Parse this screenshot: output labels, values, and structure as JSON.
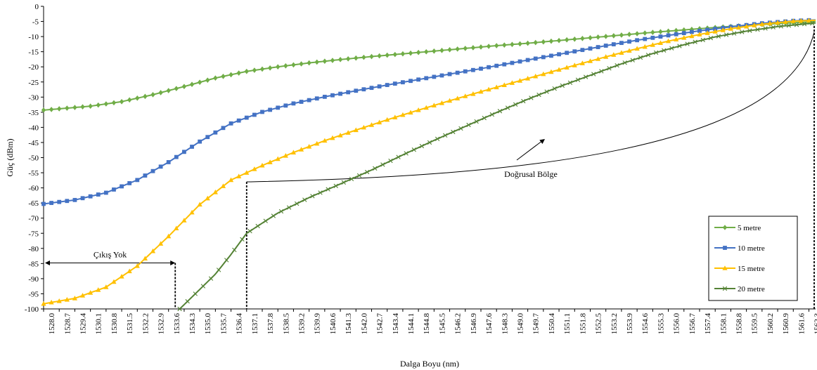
{
  "chart_data": {
    "type": "line",
    "title": "",
    "xlabel": "Dalga Boyu (nm)",
    "ylabel": "Güç (dBm)",
    "ylim": [
      -100,
      0
    ],
    "y_ticks": [
      0,
      -5,
      -10,
      -15,
      -20,
      -25,
      -30,
      -35,
      -40,
      -45,
      -50,
      -55,
      -60,
      -65,
      -70,
      -75,
      -80,
      -85,
      -90,
      -95,
      -100
    ],
    "xlim": [
      1528.0,
      1562.6
    ],
    "x_tick_labels": [
      "1528.0",
      "1528.7",
      "1529.4",
      "1530.1",
      "1530.8",
      "1531.5",
      "1532.2",
      "1532.9",
      "1533.6",
      "1534.3",
      "1535.0",
      "1535.7",
      "1536.4",
      "1537.1",
      "1537.8",
      "1538.5",
      "1539.2",
      "1539.9",
      "1540.6",
      "1541.3",
      "1542.0",
      "1542.7",
      "1543.4",
      "1544.1",
      "1544.8",
      "1545.5",
      "1546.2",
      "1546.9",
      "1547.6",
      "1548.3",
      "1549.0",
      "1549.7",
      "1550.4",
      "1551.1",
      "1551.8",
      "1552.5",
      "1553.2",
      "1553.9",
      "1554.6",
      "1555.3",
      "1556.0",
      "1556.7",
      "1557.4",
      "1558.1",
      "1558.8",
      "1559.5",
      "1560.2",
      "1560.9",
      "1561.6",
      "1562.3"
    ],
    "grid": false,
    "legend_position": "bottom-right",
    "series": [
      {
        "name": "5 metre",
        "color": "#70ad47",
        "marker": "diamond",
        "points": [
          [
            1528.0,
            -34.3
          ],
          [
            1530.1,
            -33.0
          ],
          [
            1531.5,
            -31.5
          ],
          [
            1532.9,
            -29.2
          ],
          [
            1534.3,
            -26.5
          ],
          [
            1535.7,
            -23.7
          ],
          [
            1537.1,
            -21.5
          ],
          [
            1538.5,
            -20.0
          ],
          [
            1539.9,
            -18.7
          ],
          [
            1541.3,
            -17.6
          ],
          [
            1542.7,
            -16.6
          ],
          [
            1544.1,
            -15.7
          ],
          [
            1545.5,
            -14.8
          ],
          [
            1546.9,
            -13.9
          ],
          [
            1548.3,
            -13.0
          ],
          [
            1549.7,
            -12.2
          ],
          [
            1551.1,
            -11.3
          ],
          [
            1552.5,
            -10.4
          ],
          [
            1553.9,
            -9.5
          ],
          [
            1555.3,
            -8.6
          ],
          [
            1556.7,
            -7.8
          ],
          [
            1558.1,
            -7.0
          ],
          [
            1559.5,
            -6.3
          ],
          [
            1560.9,
            -5.7
          ],
          [
            1562.3,
            -5.2
          ],
          [
            1562.6,
            -5.0
          ]
        ]
      },
      {
        "name": "10 metre",
        "color": "#4472c4",
        "marker": "square",
        "points": [
          [
            1528.0,
            -65.3
          ],
          [
            1529.4,
            -64.0
          ],
          [
            1530.8,
            -61.6
          ],
          [
            1532.2,
            -57.4
          ],
          [
            1533.6,
            -51.5
          ],
          [
            1535.0,
            -44.7
          ],
          [
            1536.4,
            -38.7
          ],
          [
            1537.8,
            -34.9
          ],
          [
            1539.2,
            -32.1
          ],
          [
            1540.6,
            -29.9
          ],
          [
            1542.0,
            -27.9
          ],
          [
            1543.4,
            -26.0
          ],
          [
            1544.8,
            -24.2
          ],
          [
            1546.2,
            -22.4
          ],
          [
            1547.6,
            -20.6
          ],
          [
            1549.0,
            -18.7
          ],
          [
            1550.4,
            -16.8
          ],
          [
            1551.8,
            -14.9
          ],
          [
            1553.2,
            -13.0
          ],
          [
            1554.6,
            -11.2
          ],
          [
            1556.0,
            -9.6
          ],
          [
            1557.4,
            -8.1
          ],
          [
            1558.8,
            -6.8
          ],
          [
            1560.2,
            -5.6
          ],
          [
            1561.6,
            -4.8
          ],
          [
            1562.6,
            -4.5
          ]
        ]
      },
      {
        "name": "15 metre",
        "color": "#ffc000",
        "marker": "triangle",
        "points": [
          [
            1528.0,
            -98.3
          ],
          [
            1529.4,
            -96.5
          ],
          [
            1530.8,
            -92.8
          ],
          [
            1532.2,
            -85.8
          ],
          [
            1533.6,
            -76.0
          ],
          [
            1535.0,
            -65.5
          ],
          [
            1536.4,
            -57.4
          ],
          [
            1537.8,
            -52.6
          ],
          [
            1539.2,
            -48.3
          ],
          [
            1540.6,
            -44.4
          ],
          [
            1542.0,
            -40.9
          ],
          [
            1543.4,
            -37.5
          ],
          [
            1544.8,
            -34.3
          ],
          [
            1546.2,
            -31.2
          ],
          [
            1547.6,
            -28.2
          ],
          [
            1549.0,
            -25.3
          ],
          [
            1550.4,
            -22.4
          ],
          [
            1551.8,
            -19.5
          ],
          [
            1553.2,
            -16.7
          ],
          [
            1554.6,
            -14.0
          ],
          [
            1556.0,
            -11.5
          ],
          [
            1557.4,
            -9.3
          ],
          [
            1558.8,
            -7.4
          ],
          [
            1560.2,
            -5.9
          ],
          [
            1561.6,
            -4.9
          ],
          [
            1562.6,
            -4.6
          ]
        ]
      },
      {
        "name": "20 metre",
        "color": "#548235",
        "marker": "x",
        "points": [
          [
            1534.1,
            -100.0
          ],
          [
            1534.8,
            -95.0
          ],
          [
            1535.7,
            -88.5
          ],
          [
            1536.4,
            -82.0
          ],
          [
            1537.1,
            -75.0
          ],
          [
            1538.5,
            -68.3
          ],
          [
            1539.9,
            -63.2
          ],
          [
            1541.3,
            -58.7
          ],
          [
            1542.7,
            -54.1
          ],
          [
            1544.1,
            -49.1
          ],
          [
            1545.5,
            -44.3
          ],
          [
            1546.9,
            -39.7
          ],
          [
            1548.3,
            -35.1
          ],
          [
            1549.7,
            -30.7
          ],
          [
            1551.1,
            -26.6
          ],
          [
            1552.5,
            -22.8
          ],
          [
            1553.9,
            -19.0
          ],
          [
            1555.3,
            -15.6
          ],
          [
            1556.7,
            -12.7
          ],
          [
            1558.1,
            -10.1
          ],
          [
            1559.5,
            -8.2
          ],
          [
            1560.9,
            -6.7
          ],
          [
            1562.3,
            -5.7
          ],
          [
            1562.6,
            -5.5
          ]
        ]
      }
    ],
    "annotations": {
      "no_output_label": "Çıkış Yok",
      "linear_region_label": "Doğrusal Bölge"
    }
  }
}
